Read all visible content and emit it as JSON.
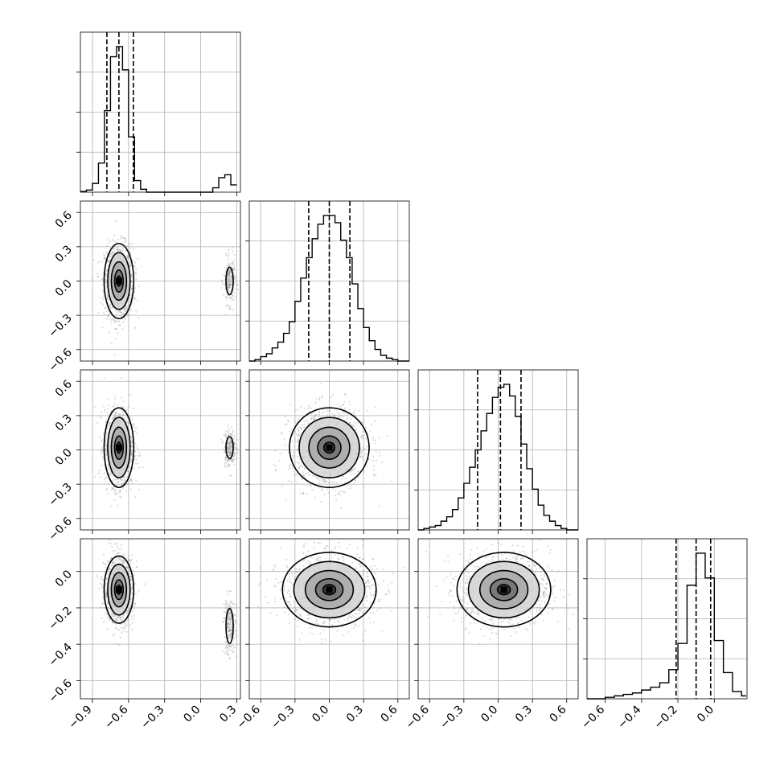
{
  "chart_data": {
    "type": "corner",
    "n_params": 4,
    "grid": true,
    "params": [
      {
        "range": [
          -1.0,
          0.33
        ],
        "ticks": [
          -0.9,
          -0.6,
          -0.3,
          0.0,
          0.3
        ],
        "tick_labels": [
          "−0.9",
          "−0.6",
          "−0.3",
          "0.0",
          "0.3"
        ],
        "quantiles": [
          -0.78,
          -0.68,
          -0.56
        ],
        "hist_bins": [
          -1.0,
          -0.95,
          -0.9,
          -0.85,
          -0.8,
          -0.75,
          -0.7,
          -0.65,
          -0.6,
          -0.55,
          -0.5,
          -0.45,
          -0.4,
          -0.35,
          -0.3,
          -0.25,
          -0.2,
          -0.15,
          -0.1,
          -0.05,
          0.0,
          0.05,
          0.1,
          0.15,
          0.2,
          0.25,
          0.3
        ],
        "hist_counts": [
          0.5,
          1.5,
          6,
          20,
          56,
          93,
          100,
          84,
          38,
          8,
          2,
          0,
          0,
          0,
          0,
          0,
          0,
          0,
          0,
          0,
          0,
          0,
          3,
          10,
          12,
          5
        ]
      },
      {
        "range": [
          -0.7,
          0.7
        ],
        "ticks": [
          -0.6,
          -0.3,
          0.0,
          0.3,
          0.6
        ],
        "tick_labels": [
          "−0.6",
          "−0.3",
          "0.0",
          "0.3",
          "0.6"
        ],
        "quantiles": [
          -0.18,
          0.0,
          0.18
        ],
        "hist_bins": [
          -0.7,
          -0.65,
          -0.6,
          -0.55,
          -0.5,
          -0.45,
          -0.4,
          -0.35,
          -0.3,
          -0.25,
          -0.2,
          -0.15,
          -0.1,
          -0.05,
          0.0,
          0.05,
          0.1,
          0.15,
          0.2,
          0.25,
          0.3,
          0.35,
          0.4,
          0.45,
          0.5,
          0.55,
          0.6,
          0.65,
          0.7
        ],
        "hist_counts": [
          0,
          1,
          3,
          5,
          9,
          13,
          19,
          27,
          41,
          57,
          71,
          84,
          94,
          100,
          100,
          95,
          83,
          71,
          53,
          36,
          23,
          14,
          8,
          4,
          2,
          1,
          0,
          0
        ]
      },
      {
        "range": [
          -0.7,
          0.7
        ],
        "ticks": [
          -0.6,
          -0.3,
          0.0,
          0.3,
          0.6
        ],
        "tick_labels": [
          "−0.6",
          "−0.3",
          "0.0",
          "0.3",
          "0.6"
        ],
        "quantiles": [
          -0.18,
          0.02,
          0.2
        ],
        "hist_bins": [
          -0.7,
          -0.65,
          -0.6,
          -0.55,
          -0.5,
          -0.45,
          -0.4,
          -0.35,
          -0.3,
          -0.25,
          -0.2,
          -0.15,
          -0.1,
          -0.05,
          0.0,
          0.05,
          0.1,
          0.15,
          0.2,
          0.25,
          0.3,
          0.35,
          0.4,
          0.45,
          0.5,
          0.55,
          0.6,
          0.65,
          0.7
        ],
        "hist_counts": [
          0,
          1,
          2,
          3,
          6,
          9,
          14,
          22,
          32,
          43,
          55,
          68,
          80,
          91,
          98,
          100,
          92,
          78,
          59,
          42,
          28,
          17,
          10,
          6,
          3,
          1,
          0,
          0
        ]
      },
      {
        "range": [
          -0.7,
          0.18
        ],
        "ticks": [
          -0.6,
          -0.4,
          -0.2,
          0.0
        ],
        "tick_labels": [
          "−0.6",
          "−0.4",
          "−0.2",
          "0.0"
        ],
        "quantiles": [
          -0.21,
          -0.1,
          -0.02
        ],
        "hist_bins": [
          -0.7,
          -0.675,
          -0.65,
          -0.625,
          -0.6,
          -0.575,
          -0.55,
          -0.525,
          -0.5,
          -0.475,
          -0.45,
          -0.425,
          -0.4,
          -0.375,
          -0.35,
          -0.325,
          -0.3,
          -0.275,
          -0.25,
          -0.225,
          -0.2,
          -0.175,
          -0.15,
          -0.125,
          -0.1,
          -0.075,
          -0.05,
          -0.025,
          0.0,
          0.025,
          0.05,
          0.075,
          0.1,
          0.125,
          0.15,
          0.175
        ],
        "hist_counts": [
          0,
          0,
          0,
          0,
          1,
          1,
          2,
          2,
          3,
          3,
          4,
          4,
          6,
          6,
          8,
          8,
          11,
          11,
          20,
          20,
          38,
          38,
          78,
          78,
          100,
          100,
          83,
          83,
          40,
          40,
          18,
          18,
          5,
          5,
          2
        ]
      }
    ],
    "pair_plots": [
      {
        "row": 1,
        "col": 0,
        "mode1": {
          "mx": -0.68,
          "my": 0.0,
          "sx": 0.06,
          "sy": 0.16
        },
        "mode2": {
          "mx": 0.24,
          "my": 0.0,
          "sx": 0.025,
          "sy": 0.1
        }
      },
      {
        "row": 2,
        "col": 0,
        "mode1": {
          "mx": -0.68,
          "my": 0.02,
          "sx": 0.06,
          "sy": 0.17
        },
        "mode2": {
          "mx": 0.24,
          "my": 0.02,
          "sx": 0.025,
          "sy": 0.08
        }
      },
      {
        "row": 2,
        "col": 1,
        "mode1": {
          "mx": 0.0,
          "my": 0.02,
          "sx": 0.17,
          "sy": 0.17
        }
      },
      {
        "row": 3,
        "col": 0,
        "mode1": {
          "mx": -0.68,
          "my": -0.1,
          "sx": 0.06,
          "sy": 0.09
        },
        "mode2": {
          "mx": 0.24,
          "my": -0.3,
          "sx": 0.025,
          "sy": 0.08
        }
      },
      {
        "row": 3,
        "col": 1,
        "mode1": {
          "mx": 0.0,
          "my": -0.1,
          "sx": 0.2,
          "sy": 0.1
        }
      },
      {
        "row": 3,
        "col": 2,
        "mode1": {
          "mx": 0.05,
          "my": -0.1,
          "sx": 0.2,
          "sy": 0.1
        }
      }
    ]
  }
}
